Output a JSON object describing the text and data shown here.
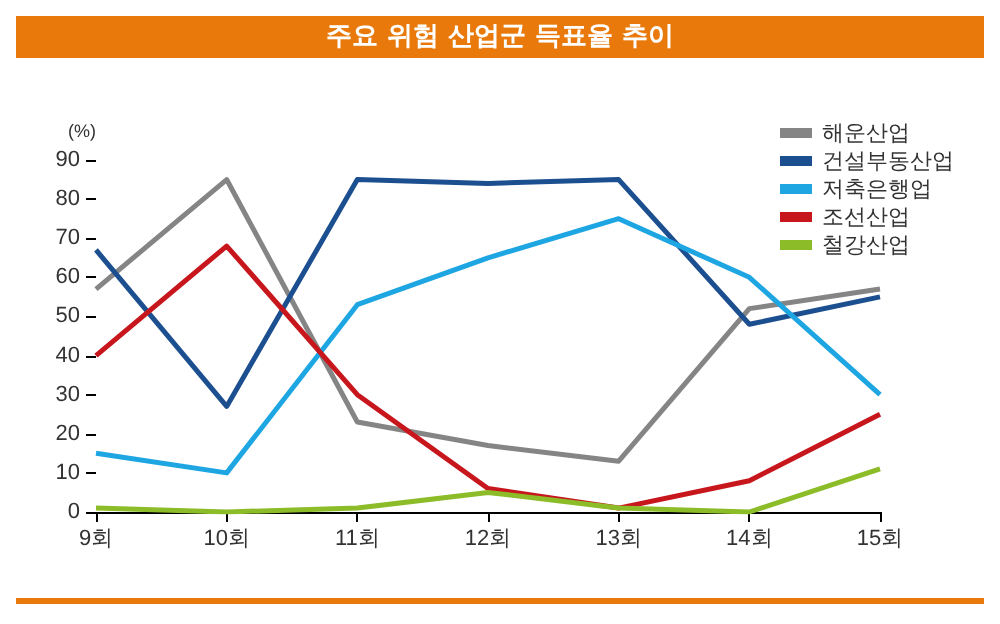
{
  "chart_data": {
    "type": "line",
    "title": "주요 위험 산업군 득표율 추이",
    "ylabel": "(%)",
    "categories": [
      "9회",
      "10회",
      "11회",
      "12회",
      "13회",
      "14회",
      "15회"
    ],
    "series": [
      {
        "name": "해운산업",
        "color": "#858585",
        "values": [
          57,
          85,
          23,
          17,
          13,
          52,
          57
        ]
      },
      {
        "name": "건설부동산업",
        "color": "#1c4f8f",
        "values": [
          67,
          27,
          85,
          84,
          85,
          48,
          55
        ]
      },
      {
        "name": "저축은행업",
        "color": "#1ea6e3",
        "values": [
          15,
          10,
          53,
          65,
          75,
          60,
          30
        ]
      },
      {
        "name": "조선산업",
        "color": "#c8161d",
        "values": [
          40,
          68,
          30,
          6,
          1,
          8,
          25
        ]
      },
      {
        "name": "철강산업",
        "color": "#8cbc28",
        "values": [
          1,
          0,
          1,
          5,
          1,
          0,
          11
        ]
      }
    ],
    "ylim": [
      0,
      90
    ],
    "yticks": [
      0,
      10,
      20,
      30,
      40,
      50,
      60,
      70,
      80,
      90
    ],
    "grid": false,
    "legend": "top right",
    "marker": "none",
    "line_style": "solid"
  }
}
